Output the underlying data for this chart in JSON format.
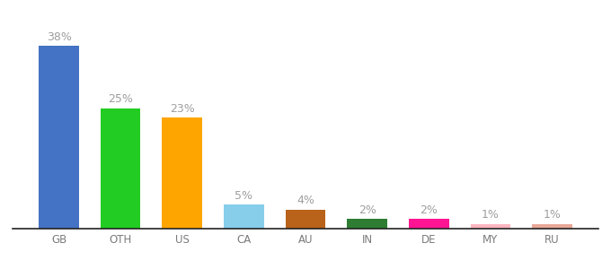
{
  "categories": [
    "GB",
    "OTH",
    "US",
    "CA",
    "AU",
    "IN",
    "DE",
    "MY",
    "RU"
  ],
  "values": [
    38,
    25,
    23,
    5,
    4,
    2,
    2,
    1,
    1
  ],
  "bar_colors": [
    "#4472C4",
    "#22CC22",
    "#FFA500",
    "#87CEEB",
    "#B8621A",
    "#2E7D32",
    "#FF1493",
    "#FFB6C1",
    "#E8A898"
  ],
  "ylim": [
    0,
    43
  ],
  "background_color": "#ffffff",
  "label_color": "#9E9E9E",
  "label_fontsize": 9,
  "xtick_fontsize": 8.5,
  "bar_width": 0.65
}
